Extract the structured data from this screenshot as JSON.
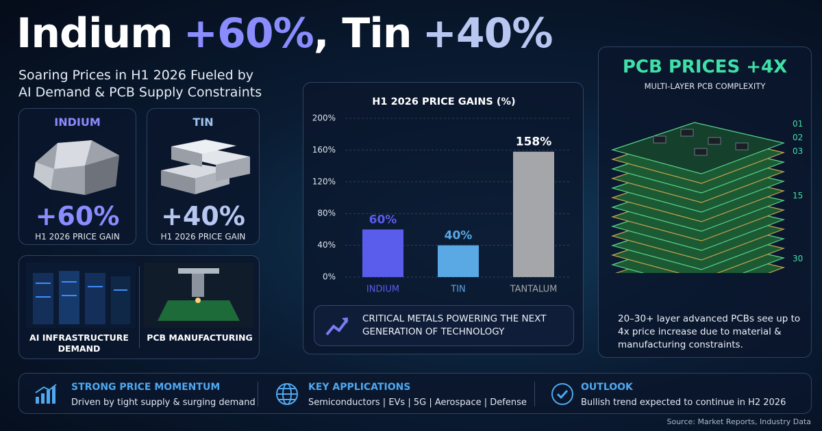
{
  "headline": {
    "metal1": "Indium",
    "gain1": "+60%",
    "metal2": ", Tin",
    "gain2": "+40%"
  },
  "subtitle": "Soaring Prices in H1 2026 Fueled by AI Demand & PCB Supply Constraints",
  "cards": [
    {
      "label": "INDIUM",
      "value": "+60%",
      "caption": "H1 2026 PRICE GAIN"
    },
    {
      "label": "TIN",
      "value": "+40%",
      "caption": "H1 2026 PRICE GAIN"
    }
  ],
  "tiles": [
    "AI INFRASTRUCTURE DEMAND",
    "PCB MANUFACTURING"
  ],
  "chart_data": {
    "type": "bar",
    "title": "H1 2026 PRICE GAINS (%)",
    "categories": [
      "INDIUM",
      "TIN",
      "TANTALUM"
    ],
    "values": [
      60,
      40,
      158
    ],
    "value_labels": [
      "60%",
      "40%",
      "158%"
    ],
    "colors": [
      "#5a5cec",
      "#5aa8e4",
      "#a4a6aa"
    ],
    "ylim": [
      0,
      200
    ],
    "yticks": [
      {
        "value": 0,
        "label": "0%"
      },
      {
        "value": 40,
        "label": "40%"
      },
      {
        "value": 80,
        "label": "80%"
      },
      {
        "value": 120,
        "label": "120%"
      },
      {
        "value": 160,
        "label": "160%"
      },
      {
        "value": 200,
        "label": "200%"
      }
    ],
    "grid": true
  },
  "chart_note": "CRITICAL METALS POWERING THE NEXT GENERATION OF TECHNOLOGY",
  "pcb": {
    "title": "PCB PRICES +4X",
    "subtitle": "MULTI-LAYER PCB COMPLEXITY",
    "layers": [
      "01",
      "02",
      "03",
      "15",
      "30"
    ],
    "description": "20–30+ layer advanced PCBs see up to 4x price increase due to material & manufacturing constraints."
  },
  "footer": [
    {
      "title": "STRONG PRICE MOMENTUM",
      "text": "Driven by tight supply & surging demand"
    },
    {
      "title": "KEY APPLICATIONS",
      "text": "Semiconductors | EVs | 5G | Aerospace | Defense"
    },
    {
      "title": "OUTLOOK",
      "text": "Bullish trend expected to continue in H2 2026"
    }
  ],
  "source": "Source: Market Reports, Industry Data"
}
